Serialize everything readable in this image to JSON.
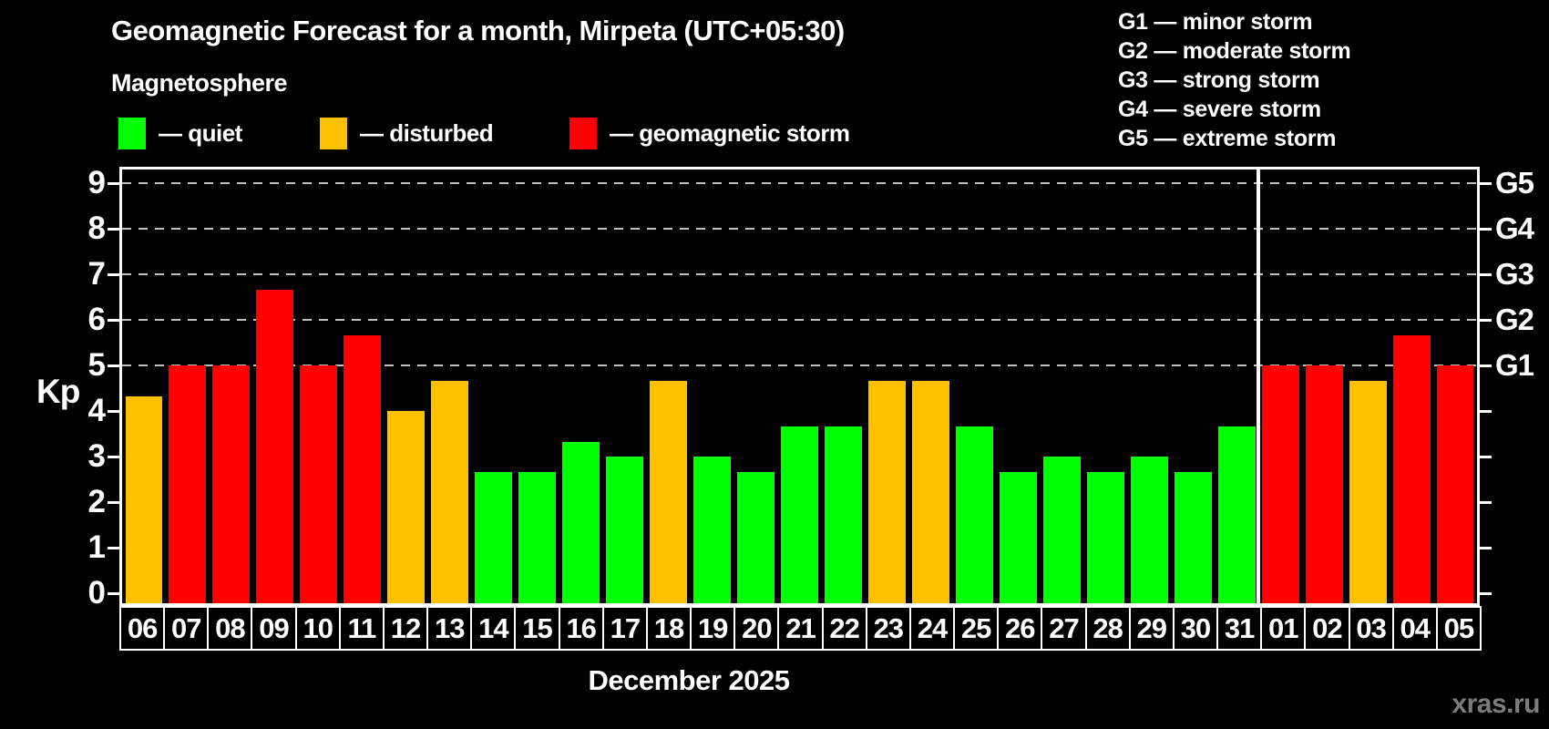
{
  "header": {
    "title": "Geomagnetic Forecast for a month, Mirpeta (UTC+05:30)",
    "subtitle": "Magnetosphere"
  },
  "legend": {
    "items": [
      {
        "label": "— quiet",
        "status": "quiet",
        "color": "#00ff00"
      },
      {
        "label": "— disturbed",
        "status": "disturbed",
        "color": "#ffc000"
      },
      {
        "label": "— geomagnetic storm",
        "status": "storm",
        "color": "#ff0000"
      }
    ]
  },
  "g_legend": {
    "lines": [
      "G1 — minor storm",
      "G2 — moderate storm",
      "G3 — strong storm",
      "G4 — severe storm",
      "G5 — extreme storm"
    ]
  },
  "watermark": "xras.ru",
  "chart_data": {
    "type": "bar",
    "title": "Geomagnetic Forecast for a month, Mirpeta (UTC+05:30)",
    "y_axis_title": "Kp",
    "x_axis_title": "December 2025",
    "ylim": [
      -0.22,
      9.3
    ],
    "y_ticks": [
      0,
      1,
      2,
      3,
      4,
      5,
      6,
      7,
      8,
      9
    ],
    "gridlines_at": [
      5,
      6,
      7,
      8,
      9
    ],
    "grid": "dashed horizontal at storm levels only",
    "legend_position": "top-left",
    "right_axis": {
      "ticks_at": [
        0,
        1,
        2,
        3,
        4,
        5,
        6,
        7,
        8,
        9
      ],
      "labels": [
        {
          "kp": 5,
          "text": "G1"
        },
        {
          "kp": 6,
          "text": "G2"
        },
        {
          "kp": 7,
          "text": "G3"
        },
        {
          "kp": 8,
          "text": "G4"
        },
        {
          "kp": 9,
          "text": "G5"
        }
      ]
    },
    "status_colors": {
      "quiet": "#00ff00",
      "disturbed": "#ffc000",
      "storm": "#ff0000"
    },
    "separator_after_index": 25,
    "days": [
      {
        "date": "06",
        "kp": 4.33,
        "status": "disturbed"
      },
      {
        "date": "07",
        "kp": 5,
        "status": "storm"
      },
      {
        "date": "08",
        "kp": 5,
        "status": "storm"
      },
      {
        "date": "09",
        "kp": 6.67,
        "status": "storm"
      },
      {
        "date": "10",
        "kp": 5,
        "status": "storm"
      },
      {
        "date": "11",
        "kp": 5.67,
        "status": "storm"
      },
      {
        "date": "12",
        "kp": 4,
        "status": "disturbed"
      },
      {
        "date": "13",
        "kp": 4.67,
        "status": "disturbed"
      },
      {
        "date": "14",
        "kp": 2.67,
        "status": "quiet"
      },
      {
        "date": "15",
        "kp": 2.67,
        "status": "quiet"
      },
      {
        "date": "16",
        "kp": 3.33,
        "status": "quiet"
      },
      {
        "date": "17",
        "kp": 3,
        "status": "quiet"
      },
      {
        "date": "18",
        "kp": 4.67,
        "status": "disturbed"
      },
      {
        "date": "19",
        "kp": 3,
        "status": "quiet"
      },
      {
        "date": "20",
        "kp": 2.67,
        "status": "quiet"
      },
      {
        "date": "21",
        "kp": 3.67,
        "status": "quiet"
      },
      {
        "date": "22",
        "kp": 3.67,
        "status": "quiet"
      },
      {
        "date": "23",
        "kp": 4.67,
        "status": "disturbed"
      },
      {
        "date": "24",
        "kp": 4.67,
        "status": "disturbed"
      },
      {
        "date": "25",
        "kp": 3.67,
        "status": "quiet"
      },
      {
        "date": "26",
        "kp": 2.67,
        "status": "quiet"
      },
      {
        "date": "27",
        "kp": 3,
        "status": "quiet"
      },
      {
        "date": "28",
        "kp": 2.67,
        "status": "quiet"
      },
      {
        "date": "29",
        "kp": 3,
        "status": "quiet"
      },
      {
        "date": "30",
        "kp": 2.67,
        "status": "quiet"
      },
      {
        "date": "31",
        "kp": 3.67,
        "status": "quiet"
      },
      {
        "date": "01",
        "kp": 5,
        "status": "storm"
      },
      {
        "date": "02",
        "kp": 5,
        "status": "storm"
      },
      {
        "date": "03",
        "kp": 4.67,
        "status": "disturbed"
      },
      {
        "date": "04",
        "kp": 5.67,
        "status": "storm"
      },
      {
        "date": "05",
        "kp": 5,
        "status": "storm"
      }
    ]
  }
}
